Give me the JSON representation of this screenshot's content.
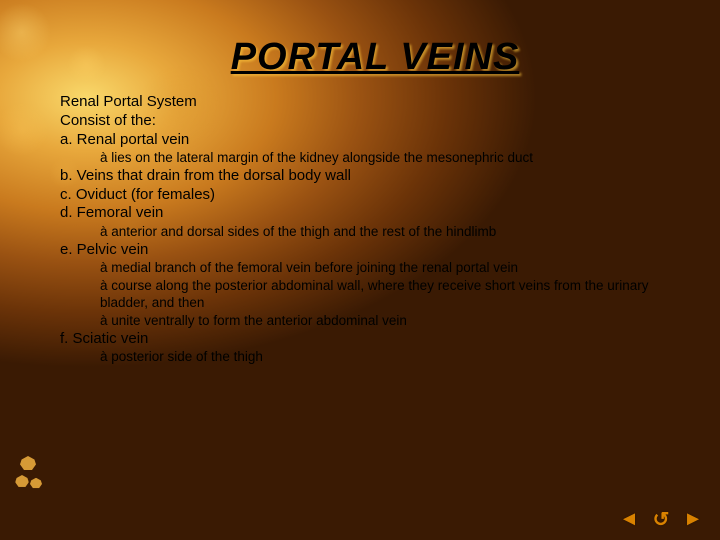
{
  "title": "PORTAL VEINS",
  "colors": {
    "text": "#000000",
    "nav_icon": "#d98200",
    "bg_bright": "#f9d86a",
    "bg_mid": "#c97a1e",
    "bg_dark": "#3a1a03"
  },
  "typography": {
    "title_fontsize_pt": 28,
    "body_fontsize_pt": 11,
    "sub_fontsize_pt": 10,
    "title_italic": true,
    "title_underline": true,
    "title_bold": true
  },
  "lines": {
    "l0": "Renal Portal System",
    "l1": "Consist of the:",
    "l2": "a. Renal portal vein",
    "l2a": "à lies on the lateral margin of the kidney alongside the mesonephric duct",
    "l3": "b. Veins that drain from the dorsal body wall",
    "l4": "c. Oviduct (for females)",
    "l5": "d. Femoral vein",
    "l5a": "à anterior and dorsal sides of the thigh and the rest of the hindlimb",
    "l6": "e. Pelvic vein",
    "l6a": "à medial branch of the femoral vein before joining the renal portal vein",
    "l6b": "à course along the posterior abdominal wall, where they receive short veins from the urinary bladder, and then",
    "l6c": "à unite ventrally to form the anterior abdominal vein",
    "l7": "f. Sciatic vein",
    "l7a": "à posterior side of the thigh"
  },
  "nav": {
    "prev": "◄",
    "home": "↺",
    "next": "►"
  }
}
